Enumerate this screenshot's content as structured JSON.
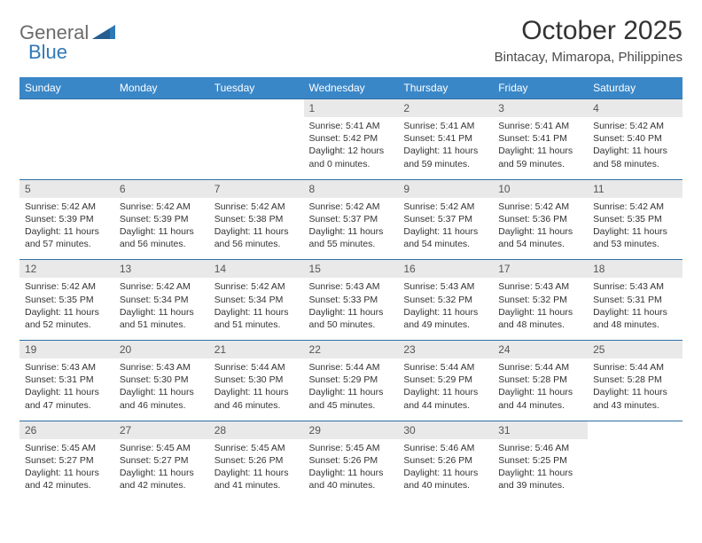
{
  "brand": {
    "part1": "General",
    "part2": "Blue"
  },
  "title": "October 2025",
  "location": "Bintacay, Mimaropa, Philippines",
  "colors": {
    "header_bg": "#3a87c8",
    "header_text": "#ffffff",
    "daynum_bg": "#e9e9e9",
    "border": "#2f6fa3",
    "brand_gray": "#6b6b6b",
    "brand_blue": "#2f78b7"
  },
  "dow": [
    "Sunday",
    "Monday",
    "Tuesday",
    "Wednesday",
    "Thursday",
    "Friday",
    "Saturday"
  ],
  "weeks": [
    [
      null,
      null,
      null,
      {
        "n": "1",
        "sr": "5:41 AM",
        "ss": "5:42 PM",
        "dl": "12 hours and 0 minutes."
      },
      {
        "n": "2",
        "sr": "5:41 AM",
        "ss": "5:41 PM",
        "dl": "11 hours and 59 minutes."
      },
      {
        "n": "3",
        "sr": "5:41 AM",
        "ss": "5:41 PM",
        "dl": "11 hours and 59 minutes."
      },
      {
        "n": "4",
        "sr": "5:42 AM",
        "ss": "5:40 PM",
        "dl": "11 hours and 58 minutes."
      }
    ],
    [
      {
        "n": "5",
        "sr": "5:42 AM",
        "ss": "5:39 PM",
        "dl": "11 hours and 57 minutes."
      },
      {
        "n": "6",
        "sr": "5:42 AM",
        "ss": "5:39 PM",
        "dl": "11 hours and 56 minutes."
      },
      {
        "n": "7",
        "sr": "5:42 AM",
        "ss": "5:38 PM",
        "dl": "11 hours and 56 minutes."
      },
      {
        "n": "8",
        "sr": "5:42 AM",
        "ss": "5:37 PM",
        "dl": "11 hours and 55 minutes."
      },
      {
        "n": "9",
        "sr": "5:42 AM",
        "ss": "5:37 PM",
        "dl": "11 hours and 54 minutes."
      },
      {
        "n": "10",
        "sr": "5:42 AM",
        "ss": "5:36 PM",
        "dl": "11 hours and 54 minutes."
      },
      {
        "n": "11",
        "sr": "5:42 AM",
        "ss": "5:35 PM",
        "dl": "11 hours and 53 minutes."
      }
    ],
    [
      {
        "n": "12",
        "sr": "5:42 AM",
        "ss": "5:35 PM",
        "dl": "11 hours and 52 minutes."
      },
      {
        "n": "13",
        "sr": "5:42 AM",
        "ss": "5:34 PM",
        "dl": "11 hours and 51 minutes."
      },
      {
        "n": "14",
        "sr": "5:42 AM",
        "ss": "5:34 PM",
        "dl": "11 hours and 51 minutes."
      },
      {
        "n": "15",
        "sr": "5:43 AM",
        "ss": "5:33 PM",
        "dl": "11 hours and 50 minutes."
      },
      {
        "n": "16",
        "sr": "5:43 AM",
        "ss": "5:32 PM",
        "dl": "11 hours and 49 minutes."
      },
      {
        "n": "17",
        "sr": "5:43 AM",
        "ss": "5:32 PM",
        "dl": "11 hours and 48 minutes."
      },
      {
        "n": "18",
        "sr": "5:43 AM",
        "ss": "5:31 PM",
        "dl": "11 hours and 48 minutes."
      }
    ],
    [
      {
        "n": "19",
        "sr": "5:43 AM",
        "ss": "5:31 PM",
        "dl": "11 hours and 47 minutes."
      },
      {
        "n": "20",
        "sr": "5:43 AM",
        "ss": "5:30 PM",
        "dl": "11 hours and 46 minutes."
      },
      {
        "n": "21",
        "sr": "5:44 AM",
        "ss": "5:30 PM",
        "dl": "11 hours and 46 minutes."
      },
      {
        "n": "22",
        "sr": "5:44 AM",
        "ss": "5:29 PM",
        "dl": "11 hours and 45 minutes."
      },
      {
        "n": "23",
        "sr": "5:44 AM",
        "ss": "5:29 PM",
        "dl": "11 hours and 44 minutes."
      },
      {
        "n": "24",
        "sr": "5:44 AM",
        "ss": "5:28 PM",
        "dl": "11 hours and 44 minutes."
      },
      {
        "n": "25",
        "sr": "5:44 AM",
        "ss": "5:28 PM",
        "dl": "11 hours and 43 minutes."
      }
    ],
    [
      {
        "n": "26",
        "sr": "5:45 AM",
        "ss": "5:27 PM",
        "dl": "11 hours and 42 minutes."
      },
      {
        "n": "27",
        "sr": "5:45 AM",
        "ss": "5:27 PM",
        "dl": "11 hours and 42 minutes."
      },
      {
        "n": "28",
        "sr": "5:45 AM",
        "ss": "5:26 PM",
        "dl": "11 hours and 41 minutes."
      },
      {
        "n": "29",
        "sr": "5:45 AM",
        "ss": "5:26 PM",
        "dl": "11 hours and 40 minutes."
      },
      {
        "n": "30",
        "sr": "5:46 AM",
        "ss": "5:26 PM",
        "dl": "11 hours and 40 minutes."
      },
      {
        "n": "31",
        "sr": "5:46 AM",
        "ss": "5:25 PM",
        "dl": "11 hours and 39 minutes."
      },
      null
    ]
  ],
  "labels": {
    "sunrise": "Sunrise:",
    "sunset": "Sunset:",
    "daylight": "Daylight:"
  }
}
